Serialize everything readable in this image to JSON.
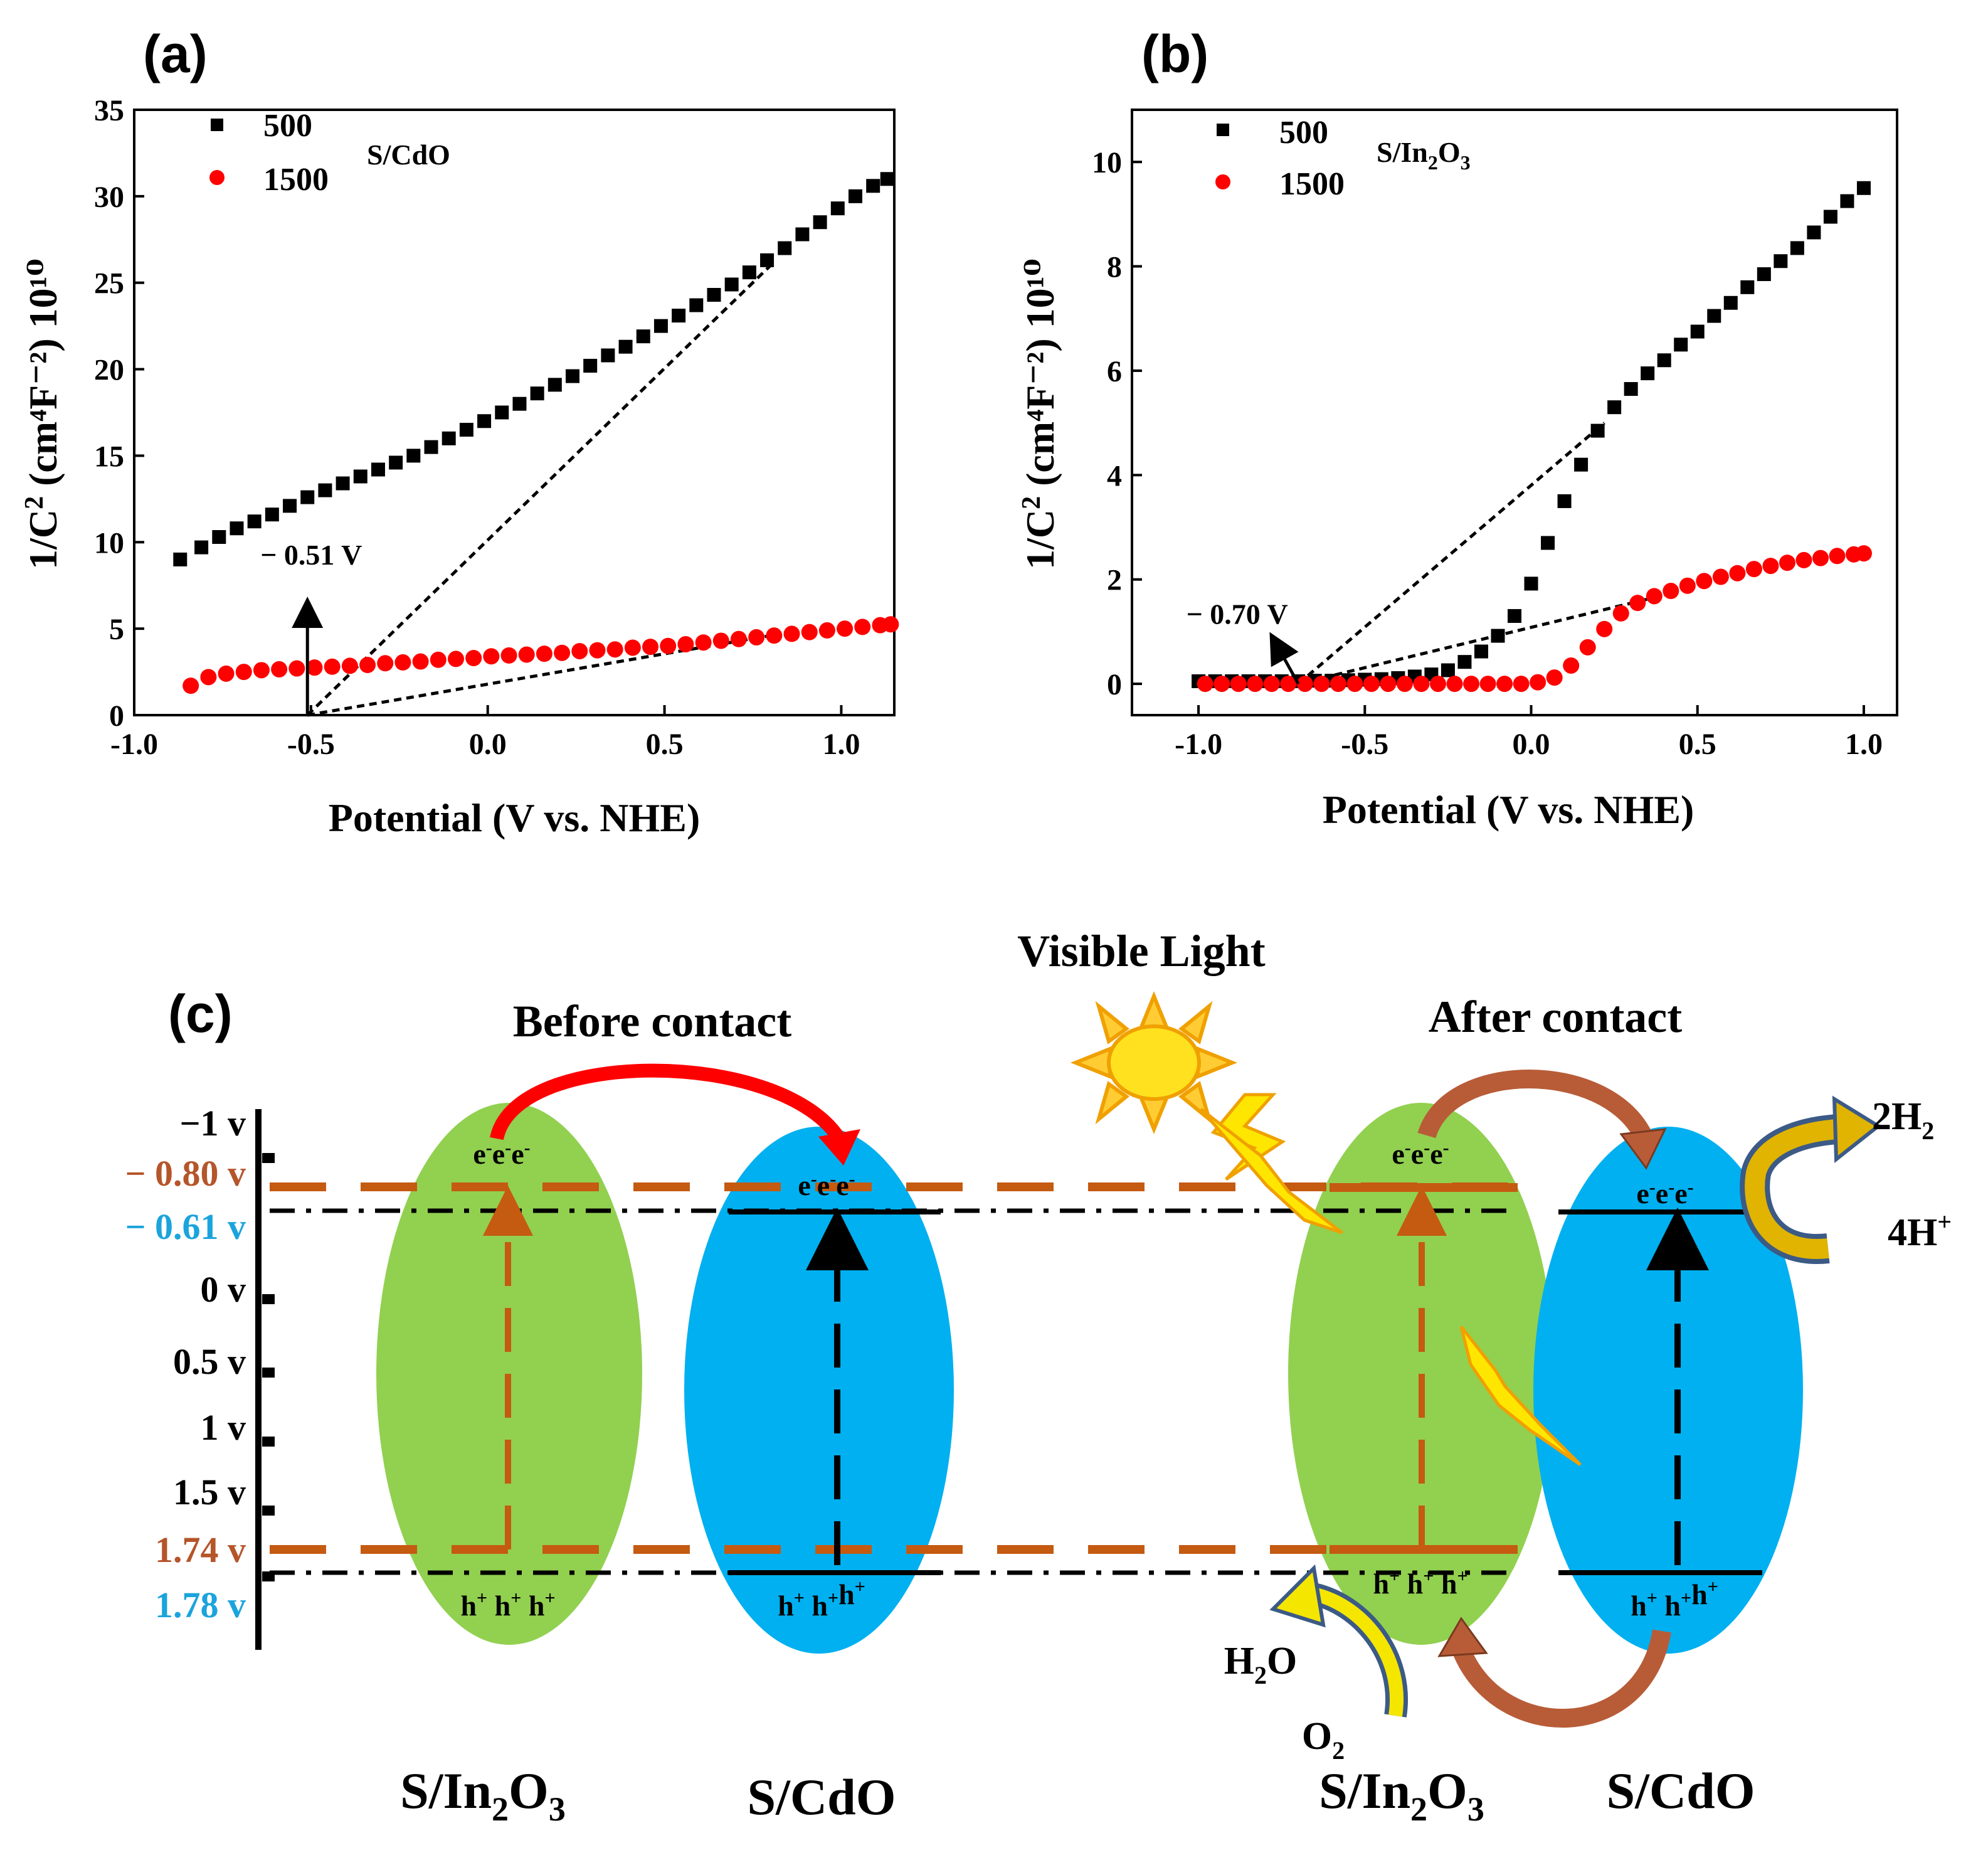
{
  "panel_labels": [
    "(a)",
    "(b)",
    "(c)"
  ],
  "chart_data": [
    {
      "type": "scatter",
      "panel": "(a)",
      "material": "S/CdO",
      "xlabel": "Potential (V vs. NHE)",
      "ylabel_main": "1/C",
      "ylabel_units": "(cm⁴F⁻²) 10¹⁰",
      "xlim": [
        -1.0,
        1.15
      ],
      "ylim": [
        0,
        35
      ],
      "x_ticks": [
        -1.0,
        -0.5,
        0.0,
        0.5,
        1.0
      ],
      "x_tick_labels": [
        "-1.0",
        "-0.5",
        "0.0",
        "0.5",
        "1.0"
      ],
      "y_ticks": [
        0,
        5,
        10,
        15,
        20,
        25,
        30,
        35
      ],
      "y_tick_labels": [
        "0",
        "5",
        "10",
        "15",
        "20",
        "25",
        "30",
        "35"
      ],
      "series": [
        {
          "name": "500",
          "color": "#000000",
          "marker": "square",
          "x": [
            -0.87,
            -0.81,
            -0.76,
            -0.71,
            -0.66,
            -0.61,
            -0.56,
            -0.51,
            -0.46,
            -0.41,
            -0.36,
            -0.31,
            -0.26,
            -0.21,
            -0.16,
            -0.11,
            -0.06,
            -0.01,
            0.04,
            0.09,
            0.14,
            0.19,
            0.24,
            0.29,
            0.34,
            0.39,
            0.44,
            0.49,
            0.54,
            0.59,
            0.64,
            0.69,
            0.74,
            0.79,
            0.84,
            0.89,
            0.94,
            0.99,
            1.04,
            1.09,
            1.13
          ],
          "y": [
            9.0,
            9.7,
            10.3,
            10.8,
            11.2,
            11.6,
            12.1,
            12.6,
            13.0,
            13.4,
            13.8,
            14.2,
            14.6,
            15.0,
            15.5,
            16.0,
            16.5,
            17.0,
            17.5,
            18.0,
            18.6,
            19.1,
            19.6,
            20.2,
            20.8,
            21.3,
            21.9,
            22.5,
            23.1,
            23.7,
            24.3,
            24.9,
            25.6,
            26.3,
            27.0,
            27.8,
            28.5,
            29.3,
            30.0,
            30.6,
            31.0
          ]
        },
        {
          "name": "1500",
          "color": "#ff0000",
          "marker": "circle",
          "x": [
            -0.84,
            -0.79,
            -0.74,
            -0.69,
            -0.64,
            -0.59,
            -0.54,
            -0.49,
            -0.44,
            -0.39,
            -0.34,
            -0.29,
            -0.24,
            -0.19,
            -0.14,
            -0.09,
            -0.04,
            0.01,
            0.06,
            0.11,
            0.16,
            0.21,
            0.26,
            0.31,
            0.36,
            0.41,
            0.46,
            0.51,
            0.56,
            0.61,
            0.66,
            0.71,
            0.76,
            0.81,
            0.86,
            0.91,
            0.96,
            1.01,
            1.06,
            1.11,
            1.14
          ],
          "y": [
            1.7,
            2.2,
            2.4,
            2.5,
            2.6,
            2.65,
            2.7,
            2.75,
            2.8,
            2.85,
            2.9,
            3.0,
            3.05,
            3.1,
            3.2,
            3.25,
            3.3,
            3.4,
            3.45,
            3.5,
            3.55,
            3.6,
            3.7,
            3.75,
            3.8,
            3.9,
            3.95,
            4.0,
            4.1,
            4.2,
            4.3,
            4.4,
            4.5,
            4.6,
            4.7,
            4.8,
            4.9,
            5.0,
            5.1,
            5.2,
            5.25
          ]
        }
      ],
      "fit_lines": [
        {
          "x": [
            -0.51,
            0.8
          ],
          "y": [
            0,
            26.0
          ]
        },
        {
          "x": [
            -0.51,
            0.8
          ],
          "y": [
            0,
            4.6
          ]
        }
      ],
      "annotation": {
        "text": "− 0.51 V",
        "x": -0.51,
        "y_from": 0,
        "y_to": 6.6
      }
    },
    {
      "type": "scatter",
      "panel": "(b)",
      "material_prefix": "S/In",
      "material_sub1": "2",
      "material_mid": "O",
      "material_sub2": "3",
      "xlabel": "Potential (V vs. NHE)",
      "ylabel_main": "1/C",
      "ylabel_units": "(cm⁴F⁻²) 10¹⁰",
      "xlim": [
        -1.2,
        1.1
      ],
      "ylim": [
        -0.6,
        11.0
      ],
      "x_ticks": [
        -1.0,
        -0.5,
        0.0,
        0.5,
        1.0
      ],
      "x_tick_labels": [
        "-1.0",
        "-0.5",
        "0.0",
        "0.5",
        "1.0"
      ],
      "y_ticks": [
        0,
        2,
        4,
        6,
        8,
        10
      ],
      "y_tick_labels": [
        "0",
        "2",
        "4",
        "6",
        "8",
        "10"
      ],
      "series": [
        {
          "name": "500",
          "color": "#000000",
          "marker": "square",
          "x": [
            -1.0,
            -0.95,
            -0.9,
            -0.85,
            -0.8,
            -0.75,
            -0.7,
            -0.65,
            -0.6,
            -0.55,
            -0.5,
            -0.45,
            -0.4,
            -0.35,
            -0.3,
            -0.25,
            -0.2,
            -0.15,
            -0.1,
            -0.05,
            0.0,
            0.05,
            0.1,
            0.15,
            0.2,
            0.25,
            0.3,
            0.35,
            0.4,
            0.45,
            0.5,
            0.55,
            0.6,
            0.65,
            0.7,
            0.75,
            0.8,
            0.85,
            0.9,
            0.95,
            1.0
          ],
          "y": [
            0.05,
            0.05,
            0.05,
            0.05,
            0.05,
            0.05,
            0.05,
            0.06,
            0.06,
            0.07,
            0.08,
            0.09,
            0.11,
            0.14,
            0.18,
            0.26,
            0.42,
            0.62,
            0.92,
            1.3,
            1.92,
            2.7,
            3.5,
            4.2,
            4.85,
            5.3,
            5.65,
            5.95,
            6.2,
            6.5,
            6.75,
            7.05,
            7.3,
            7.6,
            7.85,
            8.1,
            8.35,
            8.65,
            8.95,
            9.25,
            9.5
          ]
        },
        {
          "name": "1500",
          "color": "#ff0000",
          "marker": "circle",
          "x": [
            -0.98,
            -0.93,
            -0.88,
            -0.83,
            -0.78,
            -0.73,
            -0.68,
            -0.63,
            -0.58,
            -0.53,
            -0.48,
            -0.43,
            -0.38,
            -0.33,
            -0.28,
            -0.23,
            -0.18,
            -0.13,
            -0.08,
            -0.03,
            0.02,
            0.07,
            0.12,
            0.17,
            0.22,
            0.27,
            0.32,
            0.37,
            0.42,
            0.47,
            0.52,
            0.57,
            0.62,
            0.67,
            0.72,
            0.77,
            0.82,
            0.87,
            0.92,
            0.97,
            1.0
          ],
          "y": [
            0.0,
            0.0,
            0.0,
            0.0,
            0.0,
            0.0,
            0.0,
            0.0,
            0.0,
            0.0,
            0.0,
            0.0,
            0.0,
            0.0,
            0.0,
            0.0,
            0.0,
            0.0,
            0.0,
            0.0,
            0.03,
            0.12,
            0.35,
            0.7,
            1.05,
            1.35,
            1.55,
            1.68,
            1.78,
            1.88,
            1.97,
            2.05,
            2.12,
            2.2,
            2.26,
            2.32,
            2.37,
            2.41,
            2.45,
            2.48,
            2.5
          ]
        }
      ],
      "fit_lines": [
        {
          "x": [
            -0.7,
            0.22
          ],
          "y": [
            0,
            5.0
          ]
        },
        {
          "x": [
            -0.7,
            0.4
          ],
          "y": [
            0,
            1.7
          ]
        }
      ],
      "annotation": {
        "text": "− 0.70 V",
        "x": -0.7,
        "y": 0,
        "label_x": -0.82,
        "label_y": 1.15
      }
    }
  ],
  "diagram": {
    "visible_light": "Visible Light",
    "before_contact": "Before contact",
    "after_contact": "After contact",
    "energy_labels": [
      {
        "text": "−1 v",
        "color": "#000000"
      },
      {
        "text": "− 0.80 v",
        "color": "#b5552a"
      },
      {
        "text": "− 0.61 v",
        "color": "#1ba4dc"
      },
      {
        "text": "0   v",
        "color": "#000000"
      },
      {
        "text": "0.5  v",
        "color": "#000000"
      },
      {
        "text": "1   v",
        "color": "#000000"
      },
      {
        "text": "1.5  v",
        "color": "#000000"
      },
      {
        "text": "1.74 v",
        "color": "#b5552a"
      },
      {
        "text": "1.78 v",
        "color": "#1ba4dc"
      }
    ],
    "electrons": "e",
    "electron_sup": "-",
    "hole": "h",
    "hole_sup": "+",
    "material_in2o3": {
      "prefix": "S/In",
      "sub1": "2",
      "mid": "O",
      "sub2": "3"
    },
    "material_cdo": "S/CdO",
    "h2": {
      "main": "2H",
      "sub": "2"
    },
    "h_plus": {
      "main": "4H",
      "sup": "+"
    },
    "h2o": {
      "main1": "H",
      "sub": "2",
      "main2": "O"
    },
    "o2": {
      "main": "O",
      "sub": "2"
    },
    "colors": {
      "green": "#92d050",
      "blue": "#00b0f0",
      "orange": "#c55a11",
      "brown": "#b5552a",
      "red": "#ff0000",
      "yellow": "#ffd700"
    }
  }
}
